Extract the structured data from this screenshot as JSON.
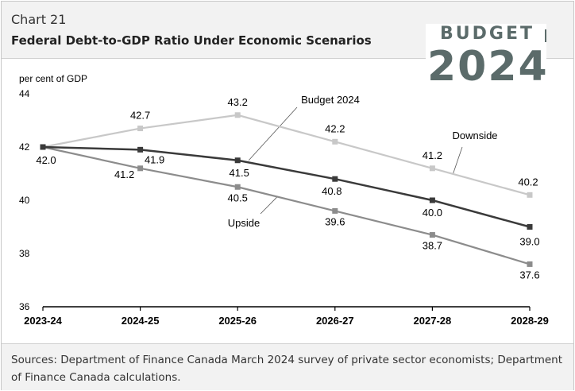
{
  "header": {
    "chart_number": "Chart 21",
    "title": "Federal Debt-to-GDP Ratio Under Economic Scenarios"
  },
  "brand": {
    "word": "BUDGET",
    "year": "2024",
    "color": "#5b6b6a"
  },
  "footer": {
    "sources": "Sources: Department of Finance Canada March 2024 survey of private sector economists; Department of Finance Canada calculations."
  },
  "chart_data": {
    "type": "line",
    "title": "Federal Debt-to-GDP Ratio Under Economic Scenarios",
    "ylabel": "per cent of GDP",
    "xlabel": "",
    "categories": [
      "2023-24",
      "2024-25",
      "2025-26",
      "2026-27",
      "2027-28",
      "2028-29"
    ],
    "ylim": [
      36,
      44
    ],
    "yticks": [
      36,
      38,
      40,
      42,
      44
    ],
    "series": [
      {
        "name": "Downside",
        "color": "#c8c8c8",
        "values": [
          42.0,
          42.7,
          43.2,
          42.2,
          41.2,
          40.2
        ],
        "labels": [
          "",
          "42.7",
          "43.2",
          "42.2",
          "41.2",
          "40.2"
        ]
      },
      {
        "name": "Budget 2024",
        "color": "#3a3a3a",
        "values": [
          42.0,
          41.9,
          41.5,
          40.8,
          40.0,
          39.0
        ],
        "labels": [
          "42.0",
          "41.9",
          "41.5",
          "40.8",
          "40.0",
          "39.0"
        ]
      },
      {
        "name": "Upside",
        "color": "#8c8c8c",
        "values": [
          42.0,
          41.2,
          40.5,
          39.6,
          38.7,
          37.6
        ],
        "labels": [
          "",
          "41.2",
          "40.5",
          "39.6",
          "38.7",
          "37.6"
        ]
      }
    ],
    "annotations": [
      "Budget 2024",
      "Downside",
      "Upside"
    ]
  }
}
